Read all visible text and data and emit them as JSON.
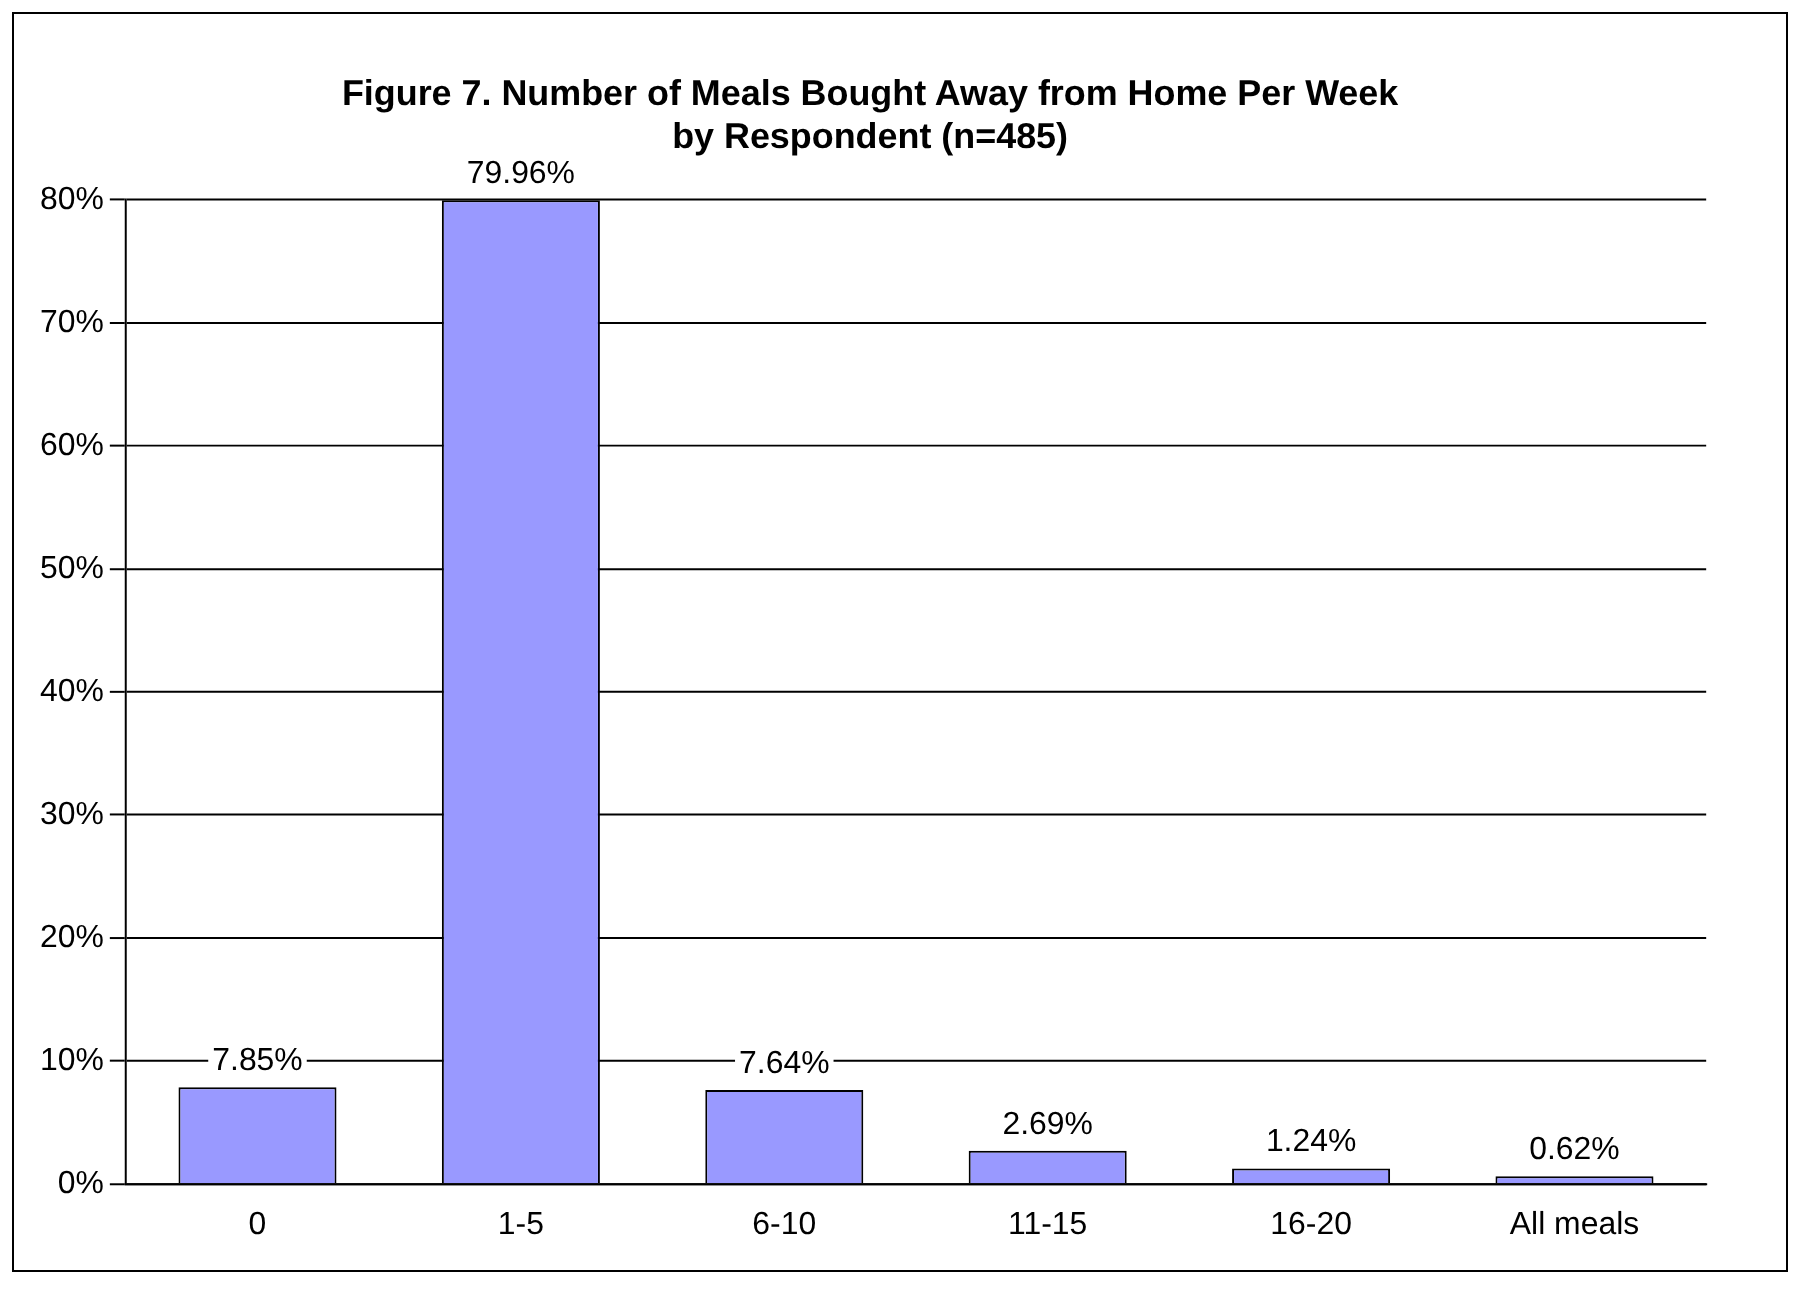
{
  "chart_data": {
    "type": "bar",
    "title": "Figure 7. Number of Meals Bought Away from Home Per Week\nby Respondent (n=485)",
    "categories": [
      "0",
      "1-5",
      "6-10",
      "11-15",
      "16-20",
      "All meals"
    ],
    "values": [
      7.85,
      79.96,
      7.64,
      2.69,
      1.24,
      0.62
    ],
    "value_labels": [
      "7.85%",
      "79.96%",
      "7.64%",
      "2.69%",
      "1.24%",
      "0.62%"
    ],
    "color": "#9999ff",
    "ylim": [
      0,
      80
    ],
    "yticks": [
      {
        "value": 0,
        "label": "0%"
      },
      {
        "value": 10,
        "label": "10%"
      },
      {
        "value": 20,
        "label": "20%"
      },
      {
        "value": 30,
        "label": "30%"
      },
      {
        "value": 40,
        "label": "40%"
      },
      {
        "value": 50,
        "label": "50%"
      },
      {
        "value": 60,
        "label": "60%"
      },
      {
        "value": 70,
        "label": "70%"
      },
      {
        "value": 80,
        "label": "80%"
      }
    ],
    "grid": "y",
    "legend": false
  }
}
